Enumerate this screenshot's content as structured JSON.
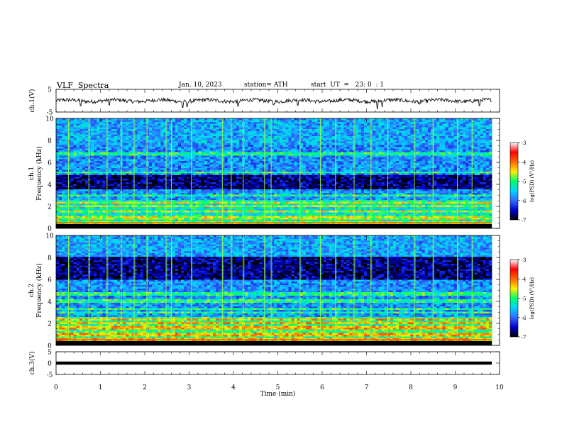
{
  "header": {
    "title": "VLF  Spectra",
    "date": "Jan. 10, 2023",
    "station": "station= ATH",
    "start_ut": "start  UT  =   23: 0  : 1"
  },
  "colorbar": {
    "label": "log(PSD) (V²/Hz)",
    "ticks": [
      "-3",
      "-4",
      "-5",
      "-6",
      "-7"
    ],
    "colors": [
      "#000000",
      "#0000cc",
      "#2f6cff",
      "#00d4ff",
      "#00ff66",
      "#ffee00",
      "#ff6600",
      "#ff0000",
      "#ffffff"
    ]
  },
  "chart_data": [
    {
      "type": "line",
      "name": "ch.1 waveform",
      "ylabel": "ch.1(V)",
      "ylim": [
        -5,
        5
      ],
      "yticks": [
        "5",
        "-5"
      ],
      "xlim": [
        0,
        10
      ],
      "baseline": 0,
      "spikes": [
        {
          "x": 0.55,
          "y": -2.2
        },
        {
          "x": 1.2,
          "y": -1.9
        },
        {
          "x": 2.85,
          "y": -3.0
        },
        {
          "x": 2.95,
          "y": -2.6
        },
        {
          "x": 4.1,
          "y": -2.4
        },
        {
          "x": 4.9,
          "y": -1.8
        },
        {
          "x": 5.45,
          "y": -2.0
        },
        {
          "x": 7.25,
          "y": -3.4
        },
        {
          "x": 7.35,
          "y": -2.9
        },
        {
          "x": 8.2,
          "y": -1.5
        },
        {
          "x": 9.55,
          "y": -2.2
        }
      ],
      "grid": false
    },
    {
      "type": "heatmap",
      "name": "ch.1 spectrogram",
      "ylabel": "ch.1\nFrequency  (kHz)",
      "ylim": [
        0,
        10
      ],
      "yticks": [
        "0",
        "2",
        "4",
        "6",
        "8",
        "10"
      ],
      "xlim": [
        0,
        9.82
      ],
      "value_range": [
        -7,
        -3
      ],
      "dark_band_khz": [
        3.5,
        5.0
      ],
      "bright_lines_khz": [
        0.3,
        0.6,
        1.0,
        1.5,
        2.0,
        2.3,
        3.0,
        5.0,
        6.8
      ],
      "sferic_times_min": [
        0.28,
        0.74,
        1.15,
        1.47,
        1.76,
        2.05,
        2.48,
        2.6,
        3.05,
        3.75,
        3.95,
        4.22,
        4.7,
        4.85,
        5.5,
        5.96,
        6.3,
        6.72,
        7.1,
        7.48,
        8.08,
        8.5,
        9.05,
        9.38
      ]
    },
    {
      "type": "heatmap",
      "name": "ch.2 spectrogram",
      "ylabel": "ch.2\nFrequency  (kHz)",
      "ylim": [
        0,
        10
      ],
      "yticks": [
        "0",
        "2",
        "4",
        "6",
        "8",
        "10"
      ],
      "xlim": [
        0,
        9.82
      ],
      "value_range": [
        -7,
        -3
      ],
      "dark_band_khz": [
        6.0,
        8.0
      ],
      "bright_lines_khz": [
        0.5,
        1.0,
        1.6,
        2.0,
        2.3,
        3.0,
        3.3,
        4.0,
        4.7
      ],
      "sferic_times_min": [
        0.28,
        0.74,
        1.15,
        1.47,
        1.76,
        2.05,
        2.48,
        2.6,
        3.05,
        3.75,
        3.95,
        4.22,
        4.7,
        4.85,
        5.5,
        5.96,
        6.3,
        6.72,
        7.1,
        7.48,
        8.08,
        8.5,
        9.05,
        9.38
      ]
    },
    {
      "type": "line",
      "name": "ch.3 waveform",
      "ylabel": "ch.3(V)",
      "ylim": [
        -5,
        5
      ],
      "yticks": [
        "5",
        "0",
        "-5"
      ],
      "xlim": [
        0,
        10
      ],
      "baseline": 0,
      "grid": false
    }
  ],
  "xaxis": {
    "label": "Time  (min)",
    "ticks": [
      "0",
      "1",
      "2",
      "3",
      "4",
      "5",
      "6",
      "7",
      "8",
      "9",
      "10"
    ]
  }
}
